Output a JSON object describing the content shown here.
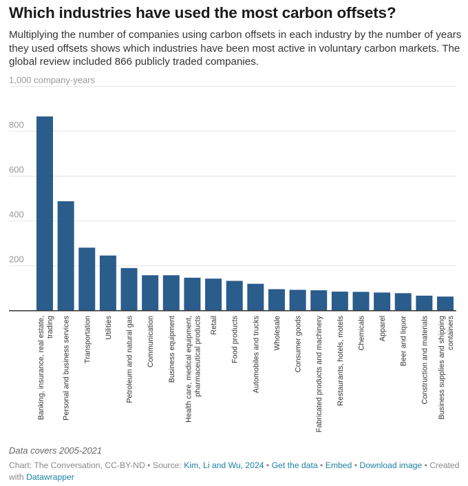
{
  "header": {
    "title": "Which industries have used the most carbon offsets?",
    "description": "Multiplying the number of companies using carbon offsets in each industry by the number of years they used offsets shows which industries have been most active in voluntary carbon markets. The global review included 866 publicly traded companies."
  },
  "chart_data": {
    "type": "bar",
    "ylabel": "1,000 company-years",
    "ylim": [
      0,
      1000
    ],
    "yticks": [
      200,
      400,
      600,
      800
    ],
    "grid": true,
    "bar_color": "#2a5c8c",
    "categories": [
      [
        "Banking, insurance, real estate,",
        "trading"
      ],
      [
        "Personal and business services"
      ],
      [
        "Transportation"
      ],
      [
        "Utilities"
      ],
      [
        "Petroleum and natural gas"
      ],
      [
        "Communication"
      ],
      [
        "Business equipment"
      ],
      [
        "Health care, medical equipment,",
        "pharmaceutical products"
      ],
      [
        "Retail"
      ],
      [
        "Food products"
      ],
      [
        "Automobiles and trucks"
      ],
      [
        "Wholesale"
      ],
      [
        "Consumer goods"
      ],
      [
        "Fabricated products and machinery"
      ],
      [
        "Restaurants, hotels, motels"
      ],
      [
        "Chemicals"
      ],
      [
        "Apparel"
      ],
      [
        "Beer and liquor"
      ],
      [
        "Construction and materials"
      ],
      [
        "Business supplies and shipping",
        "containers"
      ]
    ],
    "values": [
      866,
      488,
      281,
      246,
      190,
      158,
      158,
      147,
      143,
      133,
      120,
      96,
      93,
      91,
      85,
      84,
      81,
      78,
      67,
      63
    ]
  },
  "footer": {
    "note": "Data covers 2005-2021",
    "credit": "Chart: The Conversation, CC-BY-ND • Source: ",
    "source_link": "Kim, Li and Wu, 2024",
    "sep1": " • ",
    "get_data": "Get the data",
    "sep2": " • ",
    "embed": "Embed",
    "sep3": "  • ",
    "download": "Download image",
    "created": " • Created with ",
    "datawrapper": "Datawrapper"
  }
}
